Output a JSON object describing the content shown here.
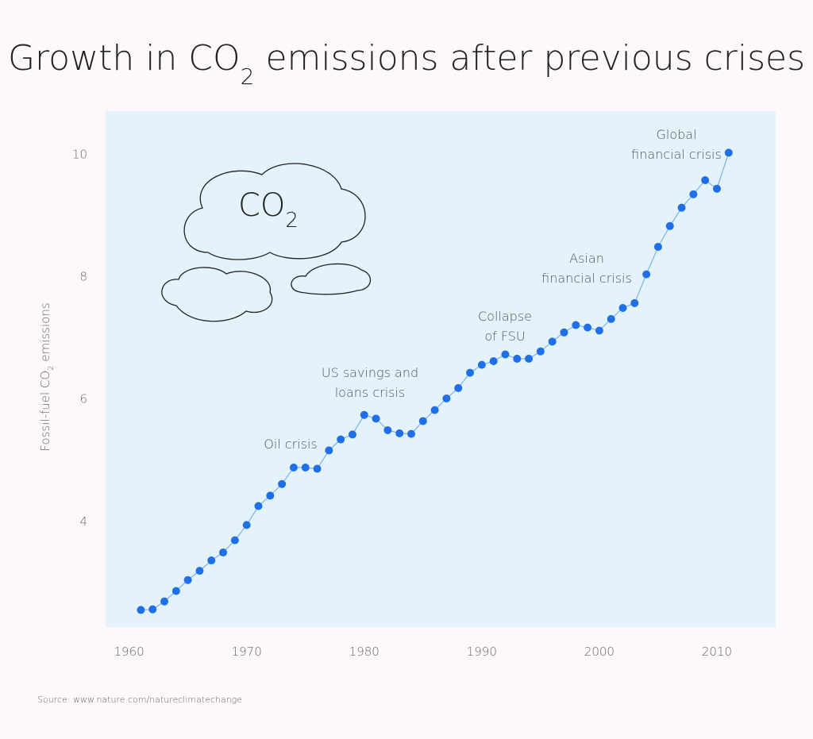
{
  "chart_data": {
    "type": "line",
    "title": [
      "Growth in CO",
      "2",
      " emissions after previous crises"
    ],
    "y_label": [
      "Fossil-fuel CO",
      "2",
      " emissions"
    ],
    "cloud_label": [
      "CO",
      "2"
    ],
    "source": "Source: www.nature.com/natureclimatechange",
    "x": [
      1961,
      1962,
      1963,
      1964,
      1965,
      1966,
      1967,
      1968,
      1969,
      1970,
      1971,
      1972,
      1973,
      1974,
      1975,
      1976,
      1977,
      1978,
      1979,
      1980,
      1981,
      1982,
      1983,
      1984,
      1985,
      1986,
      1987,
      1988,
      1989,
      1990,
      1991,
      1992,
      1993,
      1994,
      1995,
      1996,
      1997,
      1998,
      1999,
      2000,
      2001,
      2002,
      2003,
      2004,
      2005,
      2006,
      2007,
      2008,
      2009,
      2010,
      2011
    ],
    "series": [
      {
        "color": "#1f6fe8",
        "values": [
          2.55,
          2.56,
          2.69,
          2.86,
          3.04,
          3.19,
          3.36,
          3.49,
          3.69,
          3.94,
          4.25,
          4.42,
          4.61,
          4.88,
          4.88,
          4.86,
          5.16,
          5.34,
          5.42,
          5.74,
          5.68,
          5.49,
          5.44,
          5.43,
          5.64,
          5.82,
          6.01,
          6.18,
          6.43,
          6.56,
          6.62,
          6.73,
          6.66,
          6.66,
          6.78,
          6.94,
          7.09,
          7.21,
          7.17,
          7.12,
          7.31,
          7.49,
          7.57,
          8.04,
          8.49,
          8.83,
          9.13,
          9.35,
          9.58,
          9.44,
          10.03
        ]
      }
    ],
    "xlim": [
      1958,
      2015
    ],
    "xticks": [
      1960,
      1970,
      1980,
      1990,
      2000,
      2010
    ],
    "ylim": [
      2.27,
      10.71
    ],
    "yticks": [
      4,
      6,
      8,
      10
    ],
    "grid": false,
    "annotations": [
      {
        "lines": [
          "Oil crisis"
        ]
      },
      {
        "lines": [
          "US savings and",
          "loans crisis"
        ]
      },
      {
        "lines": [
          "Collapse",
          "of FSU"
        ]
      },
      {
        "lines": [
          "Asian",
          "financial crisis"
        ]
      },
      {
        "lines": [
          "Global",
          "financial crisis"
        ]
      }
    ]
  }
}
